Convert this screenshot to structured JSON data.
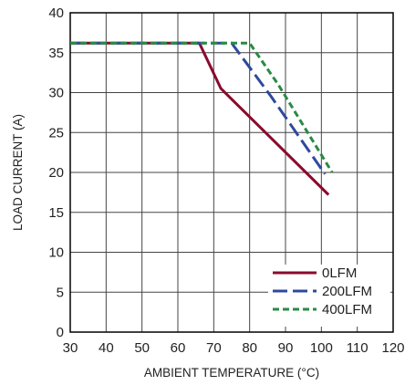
{
  "chart_data": {
    "type": "line",
    "title": "",
    "xlabel": "AMBIENT TEMPERATURE (°C)",
    "ylabel": "LOAD CURRENT (A)",
    "xlim": [
      30,
      120
    ],
    "ylim": [
      0,
      40
    ],
    "xticks": [
      30,
      40,
      50,
      60,
      70,
      80,
      90,
      100,
      110,
      120
    ],
    "yticks": [
      0,
      5,
      10,
      15,
      20,
      25,
      30,
      35,
      40
    ],
    "grid": true,
    "legend_position": "bottom-right",
    "series": [
      {
        "name": "0LFM",
        "color": "#8b0a2e",
        "dash": "solid",
        "points": [
          [
            30,
            36.2
          ],
          [
            66,
            36.2
          ],
          [
            72,
            30.5
          ],
          [
            102,
            17.2
          ]
        ]
      },
      {
        "name": "200LFM",
        "color": "#2e4a9e",
        "dash": "long-dash",
        "points": [
          [
            30,
            36.2
          ],
          [
            75,
            36.2
          ],
          [
            86,
            29.5
          ],
          [
            101,
            19.8
          ]
        ]
      },
      {
        "name": "400LFM",
        "color": "#2a8a45",
        "dash": "short-dash",
        "points": [
          [
            30,
            36.2
          ],
          [
            80,
            36.2
          ],
          [
            88,
            31.0
          ],
          [
            103,
            20.0
          ]
        ]
      }
    ]
  }
}
